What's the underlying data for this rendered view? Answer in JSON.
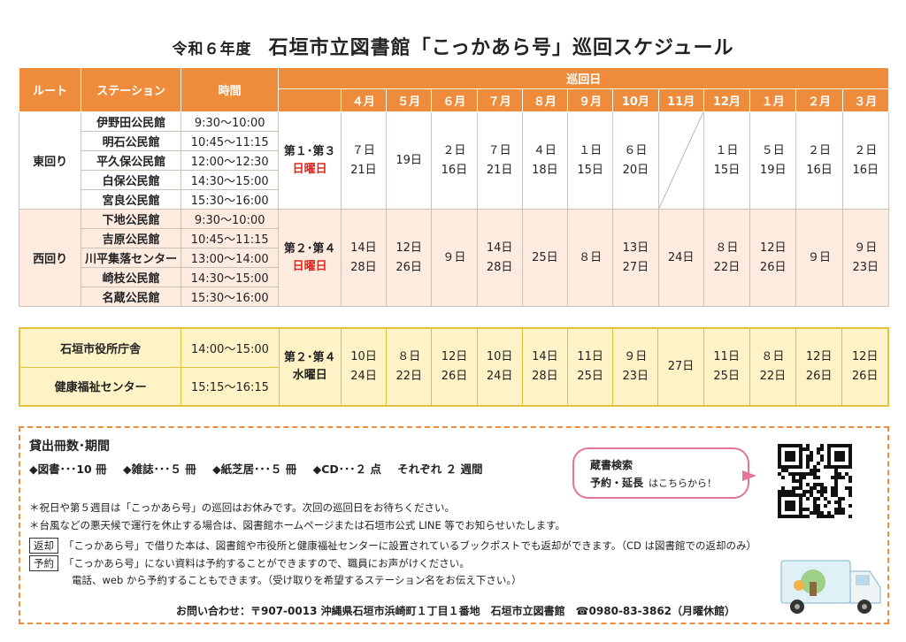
{
  "title": {
    "year": "令和６年度",
    "main": "石垣市立図書館「こっかあら号」巡回スケジュール"
  },
  "headers": {
    "route": "ルート",
    "station": "ステーション",
    "time": "時間",
    "schedule": "巡回日",
    "months": [
      "４月",
      "５月",
      "６月",
      "７月",
      "８月",
      "９月",
      "10月",
      "11月",
      "12月",
      "１月",
      "２月",
      "３月"
    ]
  },
  "east": {
    "route": "東回り",
    "stations": [
      {
        "name": "伊野田公民館",
        "time": "9:30～10:00"
      },
      {
        "name": "明石公民館",
        "time": "10:45～11:15"
      },
      {
        "name": "平久保公民館",
        "time": "12:00～12:30"
      },
      {
        "name": "白保公民館",
        "time": "14:30～15:00"
      },
      {
        "name": "宮良公民館",
        "time": "15:30～16:00"
      }
    ],
    "week": "第１･第３",
    "day": "日曜日",
    "dates": [
      [
        "７日",
        "21日"
      ],
      [
        "19日"
      ],
      [
        "２日",
        "16日"
      ],
      [
        "７日",
        "21日"
      ],
      [
        "４日",
        "18日"
      ],
      [
        "１日",
        "15日"
      ],
      [
        "６日",
        "20日"
      ],
      [],
      [
        "１日",
        "15日"
      ],
      [
        "５日",
        "19日"
      ],
      [
        "２日",
        "16日"
      ],
      [
        "２日",
        "16日"
      ]
    ]
  },
  "west": {
    "route": "西回り",
    "stations": [
      {
        "name": "下地公民館",
        "time": "9:30～10:00"
      },
      {
        "name": "吉原公民館",
        "time": "10:45～11:15"
      },
      {
        "name": "川平集落センター",
        "time": "13:00～14:00"
      },
      {
        "name": "崎枝公民館",
        "time": "14:30～15:00"
      },
      {
        "name": "名蔵公民館",
        "time": "15:30～16:00"
      }
    ],
    "week": "第２･第４",
    "day": "日曜日",
    "dates": [
      [
        "14日",
        "28日"
      ],
      [
        "12日",
        "26日"
      ],
      [
        "９日"
      ],
      [
        "14日",
        "28日"
      ],
      [
        "25日"
      ],
      [
        "８日"
      ],
      [
        "13日",
        "27日"
      ],
      [
        "24日"
      ],
      [
        "８日",
        "22日"
      ],
      [
        "12日",
        "26日"
      ],
      [
        "９日"
      ],
      [
        "９日",
        "23日"
      ]
    ]
  },
  "city": {
    "stations": [
      {
        "name": "石垣市役所庁舎",
        "time": "14:00～15:00"
      },
      {
        "name": "健康福祉センター",
        "time": "15:15～16:15"
      }
    ],
    "week": "第２･第４",
    "day": "水曜日",
    "dates": [
      [
        "10日",
        "24日"
      ],
      [
        "８日",
        "22日"
      ],
      [
        "12日",
        "26日"
      ],
      [
        "10日",
        "24日"
      ],
      [
        "14日",
        "28日"
      ],
      [
        "11日",
        "25日"
      ],
      [
        "９日",
        "23日"
      ],
      [
        "27日"
      ],
      [
        "11日",
        "25日"
      ],
      [
        "８日",
        "22日"
      ],
      [
        "12日",
        "26日"
      ],
      [
        "12日",
        "26日"
      ]
    ]
  },
  "info": {
    "heading": "貸出冊数･期間",
    "items": [
      "◆図書･･･10 冊",
      "◆雑誌･･･５ 冊",
      "◆紙芝居･･･５ 冊",
      "◆CD･･･２ 点",
      "それぞれ ２ 週間"
    ],
    "note1": "＊祝日や第５週目は「こっかあら号」の巡回はお休みです。次回の巡回日をお待ちください。",
    "note2": "＊台風などの悪天候で運行を休止する場合は、図書館ホームページまたは石垣市公式 LINE 等でお知らせいたします。",
    "return_tag": "返却",
    "return_text": "「こっかあら号」で借りた本は、図書館や市役所と健康福祉センターに設置されているブックポストでも返却ができます。（CD は図書館での返却のみ）",
    "reserve_tag": "予約",
    "reserve_text": "「こっかあら号」にない資料は予約することができますので、職員にお声がけください。",
    "reserve_text2": "電話、web から予約することもできます。（受け取りを希望するステーション名をお伝え下さい。）",
    "contact": "お問い合わせ：〒907-0013 沖縄県石垣市浜崎町１丁目１番地　石垣市立図書館　☎0980-83-3862（月曜休館）"
  },
  "bubble": {
    "line1": "蔵書検索",
    "line2": "予約・延長",
    "line3": "はこちらから！"
  }
}
